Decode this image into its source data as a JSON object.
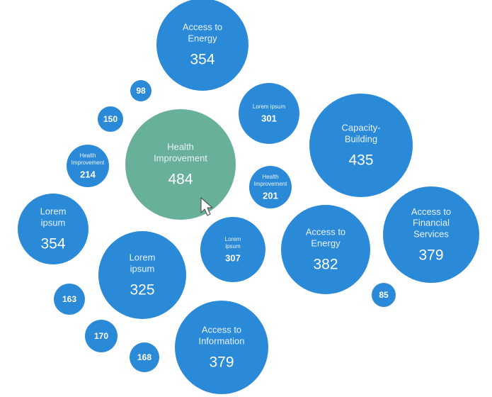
{
  "chart_data": {
    "type": "bubble",
    "title": "",
    "colors": {
      "default": "#2b8ad8",
      "highlight": "#69b09a",
      "text": "#ffffff"
    },
    "bubbles": [
      {
        "label": "Access to Energy",
        "lines": [
          "Access to",
          "Energy"
        ],
        "value": 354,
        "highlight": false
      },
      {
        "label": "",
        "lines": [],
        "value": 98,
        "highlight": false
      },
      {
        "label": "Lorem ipsum",
        "lines": [
          "Lorem ipsum"
        ],
        "value": 301,
        "highlight": false
      },
      {
        "label": "",
        "lines": [],
        "value": 150,
        "highlight": false
      },
      {
        "label": "Capacity-Building",
        "lines": [
          "Capacity-",
          "Building"
        ],
        "value": 435,
        "highlight": false
      },
      {
        "label": "Health Improvement",
        "lines": [
          "Health",
          "Improvement"
        ],
        "value": 484,
        "highlight": true
      },
      {
        "label": "Health Improvement",
        "lines": [
          "Health",
          "Improvement"
        ],
        "value": 214,
        "highlight": false
      },
      {
        "label": "Health Improvement",
        "lines": [
          "Health",
          "Improvement"
        ],
        "value": 201,
        "highlight": false
      },
      {
        "label": "Access to Financial Services",
        "lines": [
          "Access to",
          "Financial",
          "Services"
        ],
        "value": 379,
        "highlight": false
      },
      {
        "label": "Lorem ipsum",
        "lines": [
          "Lorem",
          "ipsum"
        ],
        "value": 354,
        "highlight": false
      },
      {
        "label": "Lorem ipsum",
        "lines": [
          "Lorem",
          "ipsum"
        ],
        "value": 307,
        "highlight": false
      },
      {
        "label": "Access to Energy",
        "lines": [
          "Access to",
          "Energy"
        ],
        "value": 382,
        "highlight": false
      },
      {
        "label": "Lorem ipsum",
        "lines": [
          "Lorem",
          "ipsum"
        ],
        "value": 325,
        "highlight": false
      },
      {
        "label": "",
        "lines": [],
        "value": 85,
        "highlight": false
      },
      {
        "label": "",
        "lines": [],
        "value": 163,
        "highlight": false
      },
      {
        "label": "",
        "lines": [],
        "value": 170,
        "highlight": false
      },
      {
        "label": "Access to Information",
        "lines": [
          "Access to",
          "Information"
        ],
        "value": 379,
        "highlight": false
      },
      {
        "label": "",
        "lines": [],
        "value": 168,
        "highlight": false
      }
    ]
  }
}
